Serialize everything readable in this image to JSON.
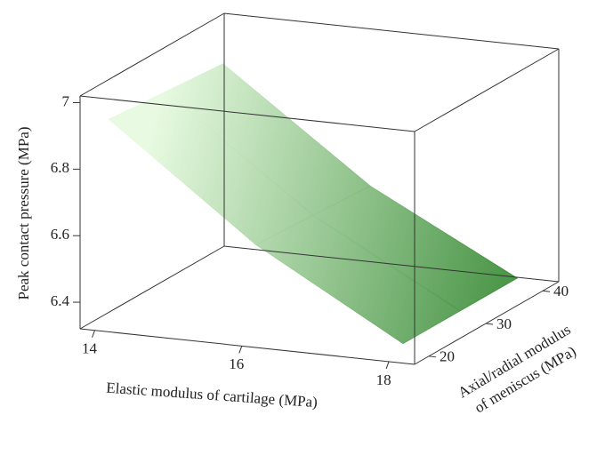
{
  "chart_data": {
    "type": "surface",
    "xlabel": "Elastic modulus of cartilage (MPa)",
    "ylabel": [
      "Axial/radial modulus",
      "of meniscus (MPa)"
    ],
    "zlabel": "Peak contact pressure (MPa)",
    "x": [
      14,
      16,
      18
    ],
    "y": [
      20,
      30,
      40
    ],
    "z": [
      [
        6.93,
        6.6,
        6.35
      ],
      [
        6.915,
        6.59,
        6.35
      ],
      [
        6.9,
        6.58,
        6.35
      ]
    ],
    "xlim": [
      13.8,
      18.35
    ],
    "xticks": [
      14,
      16,
      18
    ],
    "ylim": [
      17.5,
      42.8
    ],
    "yticks": [
      20,
      30,
      40
    ],
    "zlim": [
      6.32,
      7.02
    ],
    "zticks": [
      6.4,
      6.6,
      6.8,
      7
    ],
    "color": [
      "#e6fadf",
      "#3f8f3c"
    ]
  }
}
